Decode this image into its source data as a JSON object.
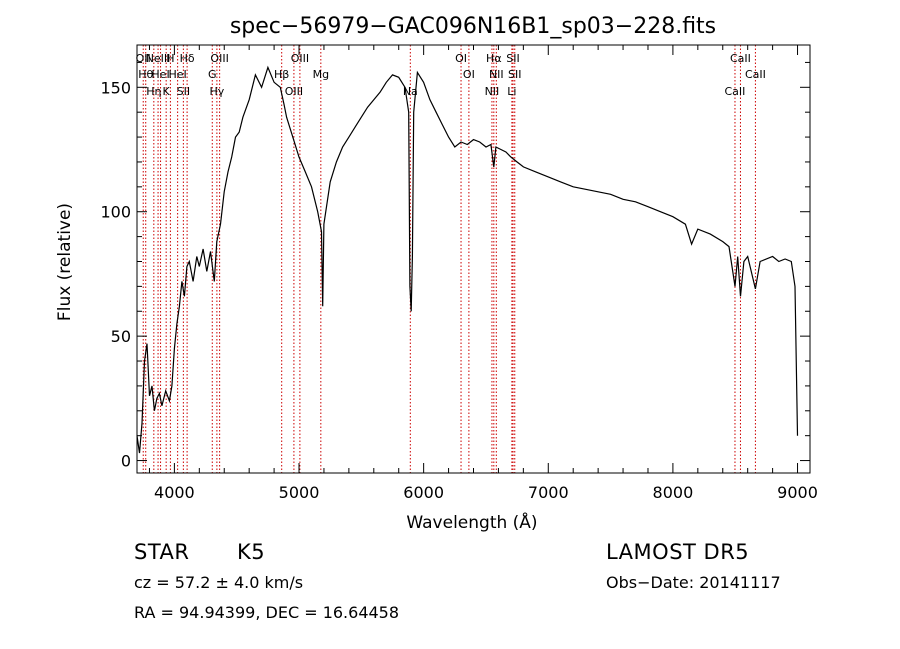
{
  "chart_data": {
    "type": "line",
    "title": "spec−56979−GAC096N16B1_sp03−228.fits",
    "xlabel": "Wavelength (Å)",
    "ylabel": "Flux (relative)",
    "xlim": [
      3700,
      9100
    ],
    "ylim": [
      -5,
      167
    ],
    "x_ticks": [
      4000,
      5000,
      6000,
      7000,
      8000,
      9000
    ],
    "y_ticks": [
      0,
      50,
      100,
      150
    ],
    "grid": false,
    "series": [
      {
        "color": "#000000",
        "points": [
          [
            3700,
            10
          ],
          [
            3720,
            3
          ],
          [
            3740,
            15
          ],
          [
            3760,
            40
          ],
          [
            3780,
            47
          ],
          [
            3800,
            26
          ],
          [
            3820,
            30
          ],
          [
            3840,
            20
          ],
          [
            3860,
            25
          ],
          [
            3880,
            27
          ],
          [
            3900,
            22
          ],
          [
            3930,
            28
          ],
          [
            3960,
            24
          ],
          [
            3980,
            30
          ],
          [
            4000,
            45
          ],
          [
            4020,
            55
          ],
          [
            4040,
            62
          ],
          [
            4060,
            72
          ],
          [
            4080,
            66
          ],
          [
            4100,
            78
          ],
          [
            4120,
            80
          ],
          [
            4150,
            72
          ],
          [
            4180,
            82
          ],
          [
            4200,
            78
          ],
          [
            4230,
            85
          ],
          [
            4260,
            76
          ],
          [
            4290,
            84
          ],
          [
            4320,
            72
          ],
          [
            4340,
            88
          ],
          [
            4370,
            95
          ],
          [
            4400,
            108
          ],
          [
            4430,
            116
          ],
          [
            4460,
            122
          ],
          [
            4490,
            130
          ],
          [
            4520,
            132
          ],
          [
            4550,
            138
          ],
          [
            4600,
            145
          ],
          [
            4650,
            155
          ],
          [
            4700,
            150
          ],
          [
            4750,
            158
          ],
          [
            4800,
            152
          ],
          [
            4850,
            150
          ],
          [
            4880,
            143
          ],
          [
            4900,
            138
          ],
          [
            4950,
            130
          ],
          [
            5000,
            122
          ],
          [
            5050,
            116
          ],
          [
            5100,
            110
          ],
          [
            5150,
            100
          ],
          [
            5180,
            92
          ],
          [
            5190,
            62
          ],
          [
            5200,
            95
          ],
          [
            5250,
            112
          ],
          [
            5300,
            120
          ],
          [
            5350,
            126
          ],
          [
            5400,
            130
          ],
          [
            5450,
            134
          ],
          [
            5500,
            138
          ],
          [
            5550,
            142
          ],
          [
            5600,
            145
          ],
          [
            5650,
            148
          ],
          [
            5700,
            152
          ],
          [
            5750,
            155
          ],
          [
            5800,
            154
          ],
          [
            5850,
            150
          ],
          [
            5880,
            140
          ],
          [
            5890,
            70
          ],
          [
            5900,
            60
          ],
          [
            5910,
            82
          ],
          [
            5920,
            140
          ],
          [
            5950,
            156
          ],
          [
            6000,
            152
          ],
          [
            6050,
            145
          ],
          [
            6100,
            140
          ],
          [
            6150,
            135
          ],
          [
            6200,
            130
          ],
          [
            6250,
            126
          ],
          [
            6300,
            128
          ],
          [
            6350,
            127
          ],
          [
            6400,
            129
          ],
          [
            6450,
            128
          ],
          [
            6500,
            126
          ],
          [
            6540,
            127
          ],
          [
            6563,
            118
          ],
          [
            6580,
            126
          ],
          [
            6620,
            125
          ],
          [
            6660,
            124
          ],
          [
            6700,
            122
          ],
          [
            6750,
            120
          ],
          [
            6800,
            118
          ],
          [
            6900,
            116
          ],
          [
            7000,
            114
          ],
          [
            7100,
            112
          ],
          [
            7200,
            110
          ],
          [
            7300,
            109
          ],
          [
            7400,
            108
          ],
          [
            7500,
            107
          ],
          [
            7600,
            105
          ],
          [
            7700,
            104
          ],
          [
            7800,
            102
          ],
          [
            7900,
            100
          ],
          [
            8000,
            98
          ],
          [
            8100,
            95
          ],
          [
            8150,
            87
          ],
          [
            8200,
            93
          ],
          [
            8300,
            91
          ],
          [
            8400,
            88
          ],
          [
            8450,
            86
          ],
          [
            8498,
            70
          ],
          [
            8520,
            82
          ],
          [
            8542,
            66
          ],
          [
            8570,
            80
          ],
          [
            8600,
            82
          ],
          [
            8662,
            69
          ],
          [
            8700,
            80
          ],
          [
            8800,
            82
          ],
          [
            8850,
            80
          ],
          [
            8900,
            81
          ],
          [
            8950,
            80
          ],
          [
            8980,
            70
          ],
          [
            9000,
            10
          ]
        ]
      }
    ],
    "lines": {
      "color": "#cc0000",
      "items": [
        {
          "x": 3750,
          "label": "OII"
        },
        {
          "x": 3770,
          "label": "Hθ"
        },
        {
          "x": 3835,
          "label": "Hη"
        },
        {
          "x": 3869,
          "label": "NeIII"
        },
        {
          "x": 3889,
          "label": "HeI"
        },
        {
          "x": 3934,
          "label": "K"
        },
        {
          "x": 3968,
          "label": "H"
        },
        {
          "x": 4026,
          "label": "HeI"
        },
        {
          "x": 4072,
          "label": "SII"
        },
        {
          "x": 4102,
          "label": "Hδ"
        },
        {
          "x": 4304,
          "label": "G"
        },
        {
          "x": 4341,
          "label": "Hγ"
        },
        {
          "x": 4363,
          "label": "OIII"
        },
        {
          "x": 4861,
          "label": "Hβ"
        },
        {
          "x": 4959,
          "label": "OIII"
        },
        {
          "x": 5007,
          "label": "OIII"
        },
        {
          "x": 5175,
          "label": "Mg"
        },
        {
          "x": 5893,
          "label": "Na"
        },
        {
          "x": 6300,
          "label": "OI"
        },
        {
          "x": 6363,
          "label": "OI"
        },
        {
          "x": 6548,
          "label": "NII"
        },
        {
          "x": 6563,
          "label": "Hα"
        },
        {
          "x": 6583,
          "label": "NII"
        },
        {
          "x": 6708,
          "label": "Li"
        },
        {
          "x": 6717,
          "label": "SII"
        },
        {
          "x": 6731,
          "label": "SII"
        },
        {
          "x": 8498,
          "label": "CaII"
        },
        {
          "x": 8542,
          "label": "CaII"
        },
        {
          "x": 8662,
          "label": "CaII"
        }
      ]
    }
  },
  "info": {
    "class": "STAR",
    "subclass": "K5",
    "survey": "LAMOST DR5",
    "cz": "cz = 57.2 ± 4.0 km/s",
    "obs_date": "Obs−Date: 20141117",
    "radec": "RA =  94.94399, DEC =  16.64458"
  }
}
